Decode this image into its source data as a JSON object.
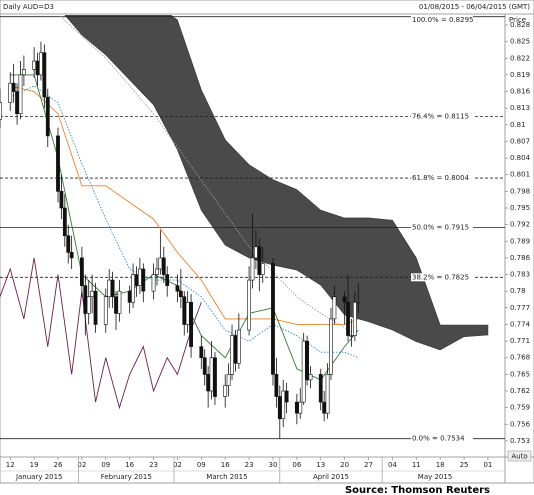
{
  "chart_data": {
    "type": "candlestick",
    "title": "Daily AUD=D3",
    "subtitle": "01/08/2015 - 06/04/2015 (GMT)",
    "y_label": "Price",
    "corner_label": "Auto",
    "source": "Source: Thomson Reuters",
    "up_color": "#ffffff",
    "down_color": "#111111",
    "x": [
      "2015-01-09",
      "2015-01-12",
      "2015-01-13",
      "2015-01-14",
      "2015-01-15",
      "2015-01-16",
      "2015-01-19",
      "2015-01-20",
      "2015-01-21",
      "2015-01-22",
      "2015-01-23",
      "2015-01-26",
      "2015-01-27",
      "2015-01-28",
      "2015-01-29",
      "2015-01-30",
      "2015-02-02",
      "2015-02-03",
      "2015-02-04",
      "2015-02-05",
      "2015-02-06",
      "2015-02-09",
      "2015-02-10",
      "2015-02-11",
      "2015-02-12",
      "2015-02-13",
      "2015-02-16",
      "2015-02-17",
      "2015-02-18",
      "2015-02-19",
      "2015-02-20",
      "2015-02-23",
      "2015-02-24",
      "2015-02-25",
      "2015-02-26",
      "2015-02-27",
      "2015-03-02",
      "2015-03-03",
      "2015-03-04",
      "2015-03-05",
      "2015-03-06",
      "2015-03-09",
      "2015-03-10",
      "2015-03-11",
      "2015-03-12",
      "2015-03-13",
      "2015-03-16",
      "2015-03-17",
      "2015-03-18",
      "2015-03-19",
      "2015-03-20",
      "2015-03-23",
      "2015-03-24",
      "2015-03-25",
      "2015-03-26",
      "2015-03-27",
      "2015-03-30",
      "2015-03-31",
      "2015-04-01",
      "2015-04-02",
      "2015-04-03",
      "2015-04-06",
      "2015-04-07",
      "2015-04-08",
      "2015-04-09",
      "2015-04-10",
      "2015-04-13",
      "2015-04-14",
      "2015-04-15",
      "2015-04-16",
      "2015-04-17",
      "2015-04-20",
      "2015-04-21",
      "2015-04-22",
      "2015-04-23",
      "2015-04-24"
    ],
    "open": [
      0.811,
      0.814,
      0.8175,
      0.816,
      0.812,
      0.819,
      0.82,
      0.8215,
      0.819,
      0.823,
      0.815,
      0.808,
      0.798,
      0.795,
      0.79,
      0.787,
      0.786,
      0.781,
      0.776,
      0.779,
      0.78,
      0.774,
      0.779,
      0.782,
      0.779,
      0.776,
      0.78,
      0.778,
      0.783,
      0.781,
      0.784,
      0.78,
      0.783,
      0.784,
      0.786,
      0.783,
      0.781,
      0.78,
      0.779,
      0.774,
      0.778,
      0.77,
      0.768,
      0.765,
      0.762,
      0.768,
      0.761,
      0.763,
      0.765,
      0.772,
      0.767,
      0.773,
      0.782,
      0.786,
      0.788,
      0.783,
      0.785,
      0.765,
      0.761,
      0.757,
      0.762,
      0.76,
      0.758,
      0.76,
      0.771,
      0.764,
      0.765,
      0.76,
      0.758,
      0.765,
      0.775,
      0.779,
      0.778,
      0.772,
      0.772,
      0.778
    ],
    "high": [
      0.8165,
      0.8195,
      0.821,
      0.8175,
      0.8215,
      0.8225,
      0.824,
      0.823,
      0.825,
      0.8245,
      0.8165,
      0.8095,
      0.801,
      0.7975,
      0.792,
      0.79,
      0.788,
      0.783,
      0.782,
      0.783,
      0.7815,
      0.7805,
      0.784,
      0.7835,
      0.78,
      0.782,
      0.781,
      0.785,
      0.7845,
      0.786,
      0.785,
      0.785,
      0.786,
      0.791,
      0.788,
      0.7845,
      0.783,
      0.784,
      0.78,
      0.78,
      0.7795,
      0.772,
      0.7695,
      0.7665,
      0.771,
      0.769,
      0.765,
      0.767,
      0.774,
      0.773,
      0.776,
      0.7845,
      0.794,
      0.791,
      0.7895,
      0.788,
      0.786,
      0.768,
      0.763,
      0.764,
      0.7635,
      0.7615,
      0.7625,
      0.7725,
      0.772,
      0.7665,
      0.766,
      0.762,
      0.767,
      0.777,
      0.781,
      0.78,
      0.783,
      0.775,
      0.78,
      0.7815
    ],
    "low": [
      0.8095,
      0.8125,
      0.814,
      0.81,
      0.811,
      0.817,
      0.8185,
      0.817,
      0.818,
      0.813,
      0.806,
      0.796,
      0.793,
      0.788,
      0.785,
      0.784,
      0.779,
      0.772,
      0.774,
      0.776,
      0.7725,
      0.7725,
      0.777,
      0.777,
      0.773,
      0.7745,
      0.776,
      0.777,
      0.779,
      0.7795,
      0.778,
      0.7785,
      0.781,
      0.783,
      0.7815,
      0.779,
      0.778,
      0.777,
      0.772,
      0.7725,
      0.768,
      0.766,
      0.763,
      0.759,
      0.7605,
      0.7595,
      0.759,
      0.761,
      0.764,
      0.7655,
      0.766,
      0.772,
      0.7805,
      0.784,
      0.78,
      0.7815,
      0.763,
      0.759,
      0.7534,
      0.7555,
      0.758,
      0.756,
      0.757,
      0.7595,
      0.763,
      0.7625,
      0.7585,
      0.7565,
      0.757,
      0.764,
      0.774,
      0.774,
      0.771,
      0.77,
      0.771,
      0.776
    ],
    "close": [
      0.814,
      0.8175,
      0.816,
      0.812,
      0.819,
      0.82,
      0.8215,
      0.819,
      0.823,
      0.815,
      0.808,
      0.798,
      0.795,
      0.79,
      0.787,
      0.786,
      0.781,
      0.776,
      0.779,
      0.78,
      0.774,
      0.779,
      0.782,
      0.779,
      0.776,
      0.78,
      0.778,
      0.783,
      0.781,
      0.784,
      0.78,
      0.783,
      0.784,
      0.786,
      0.783,
      0.781,
      0.78,
      0.779,
      0.774,
      0.778,
      0.77,
      0.768,
      0.765,
      0.762,
      0.768,
      0.761,
      0.763,
      0.765,
      0.772,
      0.767,
      0.773,
      0.782,
      0.786,
      0.788,
      0.783,
      0.785,
      0.765,
      0.761,
      0.757,
      0.762,
      0.76,
      0.758,
      0.76,
      0.771,
      0.764,
      0.765,
      0.76,
      0.758,
      0.765,
      0.775,
      0.779,
      0.778,
      0.772,
      0.772,
      0.778,
      0.778
    ],
    "cloud": {
      "color": "#4a4a4a",
      "x": [
        "2015-01-28",
        "2015-02-02",
        "2015-02-09",
        "2015-02-16",
        "2015-02-23",
        "2015-03-02",
        "2015-03-09",
        "2015-03-16",
        "2015-03-23",
        "2015-03-30",
        "2015-04-06",
        "2015-04-13",
        "2015-04-20",
        "2015-04-27",
        "2015-05-04",
        "2015-05-11",
        "2015-05-18",
        "2015-05-25",
        "2015-06-01"
      ],
      "span_a": [
        0.832,
        0.832,
        0.832,
        0.832,
        0.832,
        0.8289,
        0.8163,
        0.8073,
        0.8028,
        0.8001,
        0.7983,
        0.7946,
        0.7932,
        0.7932,
        0.7928,
        0.786,
        0.7739,
        0.7739,
        0.7739
      ],
      "span_b": [
        0.8298,
        0.8262,
        0.8226,
        0.8181,
        0.8136,
        0.8055,
        0.7946,
        0.7883,
        0.786,
        0.7847,
        0.7838,
        0.7811,
        0.7757,
        0.7745,
        0.773,
        0.7709,
        0.7694,
        0.7718,
        0.7721
      ]
    },
    "lines": [
      {
        "color": "#9a9a9a",
        "dash": true,
        "x": [
          "2015-01-26",
          "2015-02-09",
          "2015-02-23",
          "2015-03-09",
          "2015-03-23",
          "2015-04-06",
          "2015-04-13",
          "2015-04-24"
        ],
        "values": [
          0.83,
          0.822,
          0.812,
          0.8,
          0.788,
          0.779,
          0.776,
          0.772
        ]
      },
      {
        "color": "#6b1f4e",
        "dash": false,
        "x": [
          "2015-01-09",
          "2015-01-12",
          "2015-01-16",
          "2015-01-19",
          "2015-01-23",
          "2015-01-26",
          "2015-01-30",
          "2015-02-02",
          "2015-02-06",
          "2015-02-09",
          "2015-02-13",
          "2015-02-16",
          "2015-02-20",
          "2015-02-23",
          "2015-02-27",
          "2015-03-02",
          "2015-03-06",
          "2015-03-09"
        ],
        "values": [
          0.779,
          0.784,
          0.775,
          0.786,
          0.77,
          0.783,
          0.765,
          0.78,
          0.76,
          0.768,
          0.759,
          0.765,
          0.77,
          0.762,
          0.768,
          0.765,
          0.773,
          0.778
        ]
      },
      {
        "color": "#2a8bd0",
        "dash": true,
        "x": [
          "2015-01-12",
          "2015-01-19",
          "2015-01-26",
          "2015-02-02",
          "2015-02-09",
          "2015-02-16",
          "2015-02-23",
          "2015-03-02",
          "2015-03-09",
          "2015-03-16",
          "2015-03-23",
          "2015-03-30",
          "2015-04-06",
          "2015-04-13",
          "2015-04-20",
          "2015-04-24"
        ],
        "values": [
          0.815,
          0.817,
          0.814,
          0.803,
          0.793,
          0.784,
          0.782,
          0.782,
          0.779,
          0.773,
          0.771,
          0.774,
          0.772,
          0.769,
          0.769,
          0.768
        ]
      },
      {
        "color": "#e8832a",
        "dash": false,
        "x": [
          "2015-01-12",
          "2015-01-19",
          "2015-01-26",
          "2015-02-02",
          "2015-02-09",
          "2015-02-16",
          "2015-02-23",
          "2015-03-02",
          "2015-03-09",
          "2015-03-16",
          "2015-03-23",
          "2015-03-30",
          "2015-04-06",
          "2015-04-13",
          "2015-04-20",
          "2015-04-24"
        ],
        "values": [
          0.817,
          0.816,
          0.812,
          0.799,
          0.799,
          0.796,
          0.793,
          0.787,
          0.782,
          0.775,
          0.775,
          0.775,
          0.774,
          0.774,
          0.774,
          0.775
        ]
      },
      {
        "color": "#2e7d32",
        "dash": false,
        "x": [
          "2015-01-12",
          "2015-01-19",
          "2015-01-26",
          "2015-02-02",
          "2015-02-09",
          "2015-02-16",
          "2015-02-23",
          "2015-03-02",
          "2015-03-09",
          "2015-03-16",
          "2015-03-23",
          "2015-03-30",
          "2015-04-06",
          "2015-04-13",
          "2015-04-20",
          "2015-04-24"
        ],
        "values": [
          0.819,
          0.819,
          0.804,
          0.783,
          0.779,
          0.78,
          0.783,
          0.781,
          0.772,
          0.768,
          0.776,
          0.777,
          0.766,
          0.764,
          0.77,
          0.773
        ]
      }
    ],
    "levels": [
      {
        "value": 0.8295,
        "label": "100.0% = 0.8295",
        "dash": false
      },
      {
        "value": 0.8115,
        "label": "76.4% = 0.8115",
        "dash": true
      },
      {
        "value": 0.8004,
        "label": "61.8% = 0.8004",
        "dash": true
      },
      {
        "value": 0.7915,
        "label": "50.0% = 0.7915",
        "dash": false
      },
      {
        "value": 0.7825,
        "label": "38.2% = 0.7825",
        "dash": true
      },
      {
        "value": 0.7534,
        "label": "0.0% = 0.7534",
        "dash": false
      }
    ],
    "xlim": [
      "2015-01-09",
      "2015-06-06"
    ],
    "ylim": [
      0.7501,
      0.8298
    ],
    "xticks": [
      {
        "value": "2015-01-12",
        "label": "12"
      },
      {
        "value": "2015-01-19",
        "label": "19"
      },
      {
        "value": "2015-01-26",
        "label": "26"
      },
      {
        "value": "2015-02-02",
        "label": "02"
      },
      {
        "value": "2015-02-09",
        "label": "09"
      },
      {
        "value": "2015-02-16",
        "label": "16"
      },
      {
        "value": "2015-02-23",
        "label": "23"
      },
      {
        "value": "2015-03-02",
        "label": "02"
      },
      {
        "value": "2015-03-09",
        "label": "09"
      },
      {
        "value": "2015-03-16",
        "label": "16"
      },
      {
        "value": "2015-03-23",
        "label": "23"
      },
      {
        "value": "2015-03-30",
        "label": "30"
      },
      {
        "value": "2015-04-06",
        "label": "06"
      },
      {
        "value": "2015-04-13",
        "label": "13"
      },
      {
        "value": "2015-04-20",
        "label": "20"
      },
      {
        "value": "2015-04-27",
        "label": "27"
      },
      {
        "value": "2015-05-04",
        "label": "04"
      },
      {
        "value": "2015-05-11",
        "label": "11"
      },
      {
        "value": "2015-05-18",
        "label": "18"
      },
      {
        "value": "2015-05-25",
        "label": "25"
      },
      {
        "value": "2015-06-01",
        "label": "01"
      }
    ],
    "months": [
      {
        "value": "2015-01",
        "label": "January 2015"
      },
      {
        "value": "2015-02",
        "label": "February 2015"
      },
      {
        "value": "2015-03",
        "label": "March 2015"
      },
      {
        "value": "2015-04",
        "label": "April 2015"
      },
      {
        "value": "2015-05",
        "label": "May 2015"
      }
    ],
    "yticks": [
      0.828,
      0.825,
      0.822,
      0.819,
      0.816,
      0.813,
      0.81,
      0.807,
      0.804,
      0.801,
      0.798,
      0.795,
      0.792,
      0.789,
      0.786,
      0.783,
      0.78,
      0.777,
      0.774,
      0.771,
      0.768,
      0.765,
      0.762,
      0.759,
      0.756,
      0.753
    ]
  }
}
